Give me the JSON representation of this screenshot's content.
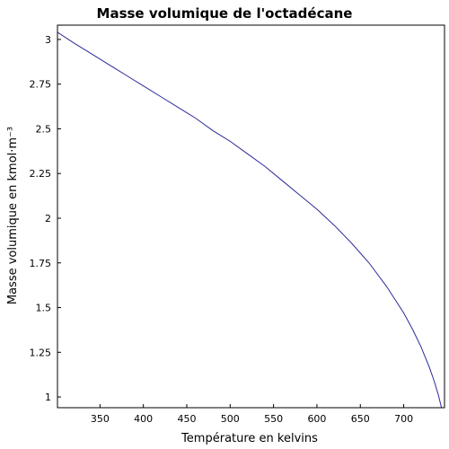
{
  "chart_data": {
    "type": "line",
    "title": "Masse volumique de l'octadécane",
    "xlabel": "Température en kelvins",
    "ylabel": "Masse volumique en kmol·m⁻³",
    "xlim": [
      301,
      747
    ],
    "ylim": [
      0.94,
      3.08
    ],
    "x_ticks": [
      350,
      400,
      450,
      500,
      550,
      600,
      650,
      700
    ],
    "y_ticks": [
      1,
      1.25,
      1.5,
      1.75,
      2,
      2.25,
      2.5,
      2.75,
      3
    ],
    "x_tick_labels": [
      "350",
      "400",
      "450",
      "500",
      "550",
      "600",
      "650",
      "700"
    ],
    "y_tick_labels": [
      "1",
      "1.25",
      "1.5",
      "1.75",
      "2",
      "2.25",
      "2.5",
      "2.75",
      "3"
    ],
    "grid": false,
    "series": [
      {
        "color": "#2a2a9a",
        "x": [
          301,
          320,
          340,
          360,
          380,
          400,
          420,
          440,
          460,
          480,
          500,
          520,
          540,
          560,
          580,
          600,
          620,
          640,
          660,
          680,
          700,
          710,
          720,
          730,
          735,
          740,
          743,
          745,
          747
        ],
        "y": [
          3.04,
          2.98,
          2.92,
          2.86,
          2.8,
          2.74,
          2.68,
          2.62,
          2.56,
          2.49,
          2.43,
          2.36,
          2.29,
          2.21,
          2.13,
          2.05,
          1.96,
          1.86,
          1.75,
          1.62,
          1.47,
          1.38,
          1.28,
          1.16,
          1.09,
          1.01,
          0.95,
          0.91,
          0.87
        ]
      }
    ]
  }
}
